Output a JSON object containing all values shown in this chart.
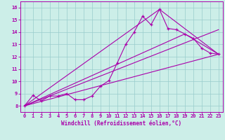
{
  "title": "",
  "xlabel": "Windchill (Refroidissement éolien,°C)",
  "ylabel": "",
  "background_color": "#cceee8",
  "line_color": "#aa00aa",
  "grid_color": "#99cccc",
  "xlim": [
    -0.5,
    23.5
  ],
  "ylim": [
    7.5,
    16.5
  ],
  "xticks": [
    0,
    1,
    2,
    3,
    4,
    5,
    6,
    7,
    8,
    9,
    10,
    11,
    12,
    13,
    14,
    15,
    16,
    17,
    18,
    19,
    20,
    21,
    22,
    23
  ],
  "yticks": [
    8,
    9,
    10,
    11,
    12,
    13,
    14,
    15,
    16
  ],
  "line1_x": [
    0,
    1,
    2,
    3,
    4,
    5,
    6,
    7,
    8,
    9,
    10,
    11,
    12,
    13,
    14,
    15,
    16,
    17,
    18,
    19,
    20,
    21,
    22,
    23
  ],
  "line1_y": [
    8.0,
    8.85,
    8.4,
    8.8,
    8.8,
    9.0,
    8.5,
    8.5,
    8.8,
    9.6,
    10.05,
    11.5,
    13.0,
    14.0,
    15.3,
    14.6,
    15.85,
    14.3,
    14.2,
    13.85,
    13.5,
    12.7,
    12.3,
    12.2
  ],
  "line2_x": [
    0,
    23
  ],
  "line2_y": [
    8.0,
    12.2
  ],
  "line3_x": [
    0,
    23
  ],
  "line3_y": [
    8.0,
    14.2
  ],
  "line4_x": [
    0,
    16,
    23
  ],
  "line4_y": [
    8.0,
    15.85,
    12.2
  ],
  "line5_x": [
    0,
    19,
    23
  ],
  "line5_y": [
    8.0,
    13.85,
    12.2
  ]
}
